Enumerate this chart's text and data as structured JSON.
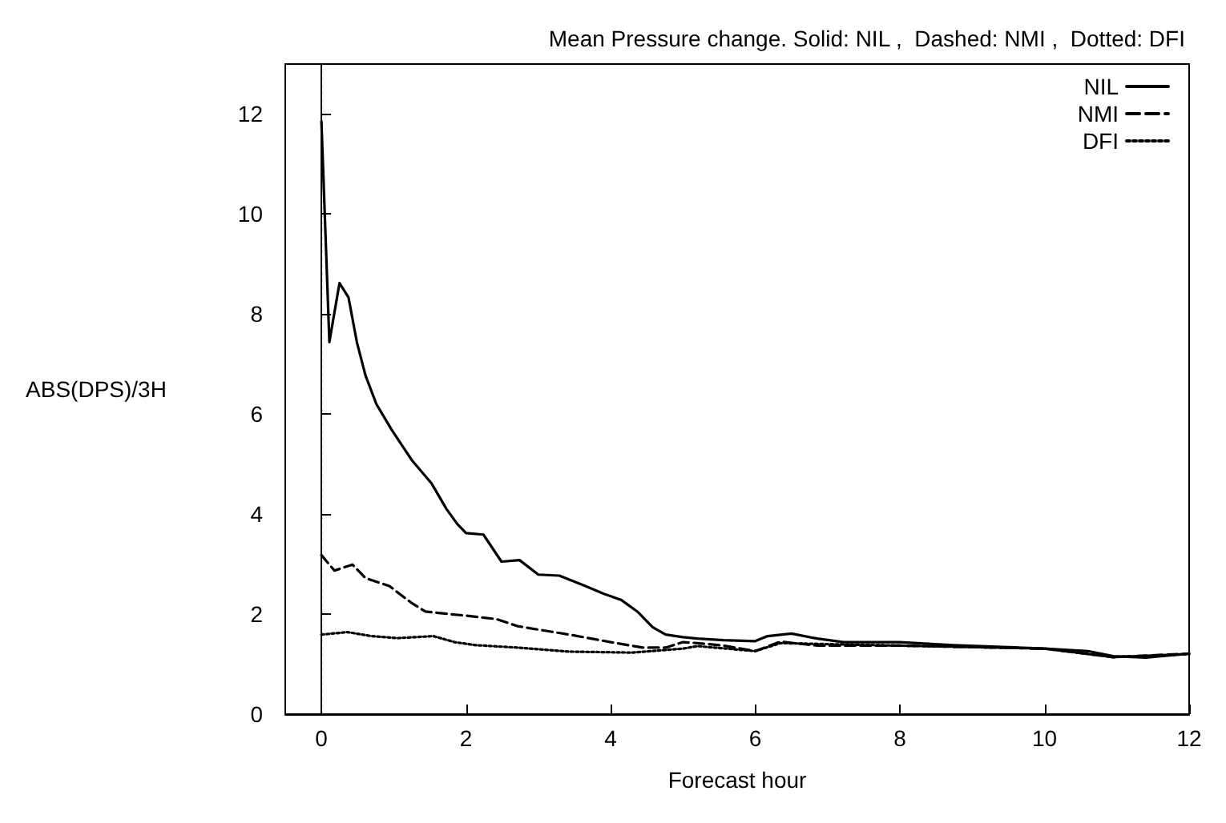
{
  "chart_data": {
    "type": "line",
    "title": "Mean Pressure change. Solid: NIL ,  Dashed: NMI ,  Dotted: DFI",
    "xlabel": "Forecast hour",
    "ylabel": "ABS(DPS)/3H",
    "xlim": [
      -0.5,
      12
    ],
    "xticks": [
      0,
      2,
      4,
      6,
      8,
      10,
      12
    ],
    "ylim": [
      0,
      13
    ],
    "yticks": [
      0,
      2,
      4,
      6,
      8,
      10,
      12
    ],
    "grid": false,
    "legend": "top right",
    "marker": "none",
    "ref_lines": [
      {
        "axis": "x",
        "value": 0,
        "line_style": "dotted",
        "color": "#000000"
      }
    ],
    "series": [
      {
        "name": "NIL",
        "color": "#000000",
        "line_style": "solid",
        "x": [
          0,
          0.11,
          0.25,
          0.375,
          0.49,
          0.61,
          0.76,
          0.97,
          1.25,
          1.52,
          1.73,
          1.88,
          2.0,
          2.24,
          2.49,
          2.74,
          3.0,
          3.29,
          3.65,
          3.9,
          4.15,
          4.37,
          4.58,
          4.76,
          5.0,
          5.2,
          5.56,
          6.0,
          6.17,
          6.5,
          6.86,
          7.22,
          8.0,
          8.73,
          9.5,
          10.0,
          10.6,
          10.95,
          11.4,
          12.0
        ],
        "values": [
          11.85,
          7.44,
          8.62,
          8.33,
          7.44,
          6.77,
          6.2,
          5.69,
          5.08,
          4.62,
          4.1,
          3.8,
          3.62,
          3.59,
          3.05,
          3.08,
          2.79,
          2.77,
          2.56,
          2.41,
          2.28,
          2.05,
          1.74,
          1.59,
          1.54,
          1.51,
          1.48,
          1.46,
          1.56,
          1.61,
          1.51,
          1.44,
          1.44,
          1.38,
          1.34,
          1.31,
          1.26,
          1.16,
          1.13,
          1.21
        ]
      },
      {
        "name": "NMI",
        "color": "#000000",
        "line_style": "dashed",
        "x": [
          0,
          0.18,
          0.43,
          0.61,
          0.94,
          1.26,
          1.44,
          1.77,
          2.0,
          2.42,
          2.71,
          3.0,
          3.43,
          4.0,
          4.44,
          4.76,
          5.0,
          5.2,
          5.56,
          6.0,
          6.35,
          6.86,
          8.0,
          10.0,
          10.95,
          12.0
        ],
        "values": [
          3.18,
          2.87,
          2.99,
          2.72,
          2.56,
          2.21,
          2.05,
          2.0,
          1.97,
          1.9,
          1.76,
          1.69,
          1.59,
          1.44,
          1.33,
          1.33,
          1.44,
          1.42,
          1.37,
          1.26,
          1.45,
          1.37,
          1.37,
          1.31,
          1.14,
          1.21
        ]
      },
      {
        "name": "DFI",
        "color": "#000000",
        "line_style": "dotted",
        "x": [
          0,
          0.36,
          0.69,
          1.05,
          1.55,
          1.84,
          2.13,
          2.71,
          3.43,
          4.3,
          5.0,
          5.2,
          6.0,
          6.35,
          8.0,
          10.0,
          10.95,
          12.0
        ],
        "values": [
          1.59,
          1.64,
          1.56,
          1.52,
          1.56,
          1.44,
          1.38,
          1.33,
          1.25,
          1.23,
          1.31,
          1.36,
          1.26,
          1.42,
          1.37,
          1.31,
          1.14,
          1.2
        ]
      }
    ]
  }
}
